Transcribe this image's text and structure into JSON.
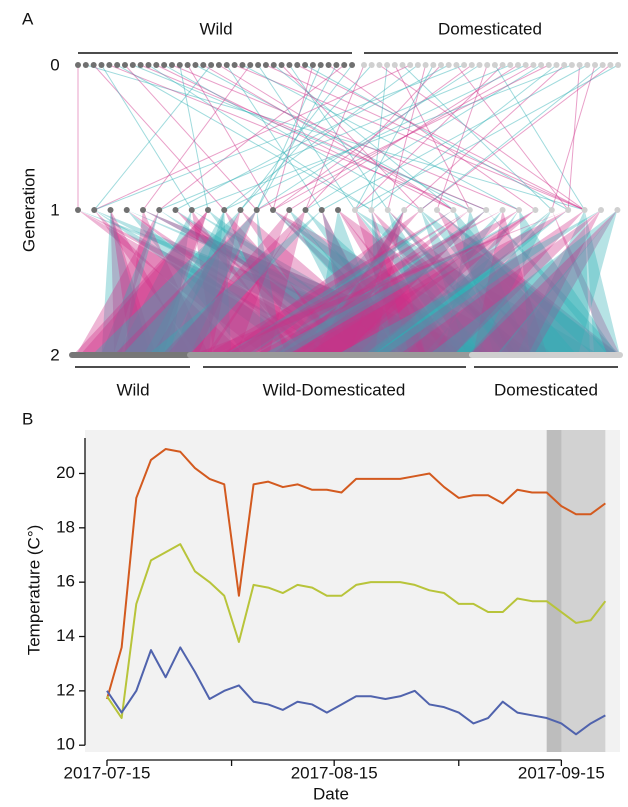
{
  "panel_a": {
    "label": "A",
    "top_groups": [
      "Wild",
      "Domesticated"
    ],
    "axis_title": "Generation",
    "levels": [
      "0",
      "1",
      "2"
    ],
    "bottom_groups": [
      "Wild",
      "Wild-Domesticated",
      "Domesticated"
    ]
  },
  "chart_data": {
    "type": "line",
    "panel_label": "B",
    "xlabel": "Date",
    "ylabel": "Temperature (C°)",
    "x": [
      "2017-07-15",
      "2017-07-17",
      "2017-07-19",
      "2017-07-21",
      "2017-07-23",
      "2017-07-25",
      "2017-07-27",
      "2017-07-29",
      "2017-07-31",
      "2017-08-02",
      "2017-08-04",
      "2017-08-06",
      "2017-08-08",
      "2017-08-10",
      "2017-08-12",
      "2017-08-14",
      "2017-08-16",
      "2017-08-18",
      "2017-08-20",
      "2017-08-22",
      "2017-08-24",
      "2017-08-26",
      "2017-08-28",
      "2017-08-30",
      "2017-09-01",
      "2017-09-03",
      "2017-09-05",
      "2017-09-07",
      "2017-09-09",
      "2017-09-11",
      "2017-09-13",
      "2017-09-15",
      "2017-09-17",
      "2017-09-19",
      "2017-09-21"
    ],
    "series": [
      {
        "color": "#d35a1f",
        "values": [
          11.7,
          13.6,
          19.1,
          20.5,
          20.9,
          20.8,
          20.2,
          19.8,
          19.6,
          15.5,
          19.6,
          19.7,
          19.5,
          19.6,
          19.4,
          19.4,
          19.3,
          19.8,
          19.8,
          19.8,
          19.8,
          19.9,
          20.0,
          19.5,
          19.1,
          19.2,
          19.2,
          18.9,
          19.4,
          19.3,
          19.3,
          18.8,
          18.5,
          18.5,
          18.9
        ]
      },
      {
        "color": "#b8c43a",
        "values": [
          11.8,
          11.0,
          15.2,
          16.8,
          17.1,
          17.4,
          16.4,
          16.0,
          15.5,
          13.8,
          15.9,
          15.8,
          15.6,
          15.9,
          15.8,
          15.5,
          15.5,
          15.9,
          16.0,
          16.0,
          16.0,
          15.9,
          15.7,
          15.6,
          15.2,
          15.2,
          14.9,
          14.9,
          15.4,
          15.3,
          15.3,
          14.9,
          14.5,
          14.6,
          15.3
        ]
      },
      {
        "color": "#5063ad",
        "values": [
          12.0,
          11.2,
          12.0,
          13.5,
          12.5,
          13.6,
          12.7,
          11.7,
          12.0,
          12.2,
          11.6,
          11.5,
          11.3,
          11.6,
          11.5,
          11.2,
          11.5,
          11.8,
          11.8,
          11.7,
          11.8,
          12.0,
          11.5,
          11.4,
          11.2,
          10.8,
          11.0,
          11.6,
          11.2,
          11.1,
          11.0,
          10.8,
          10.4,
          10.8,
          11.1
        ]
      }
    ],
    "xlim": [
      "2017-07-12",
      "2017-09-23"
    ],
    "xticks": [
      "2017-07-15",
      "2017-08-15",
      "2017-09-15"
    ],
    "xminorticks": [
      "2017-08-01",
      "2017-09-01"
    ],
    "ylim": [
      9.75,
      21.6
    ],
    "yticks": [
      10,
      12,
      14,
      16,
      18,
      20
    ],
    "shaded": [
      [
        "2017-09-13",
        "2017-09-21"
      ],
      [
        "2017-09-13",
        "2017-09-15"
      ]
    ]
  }
}
